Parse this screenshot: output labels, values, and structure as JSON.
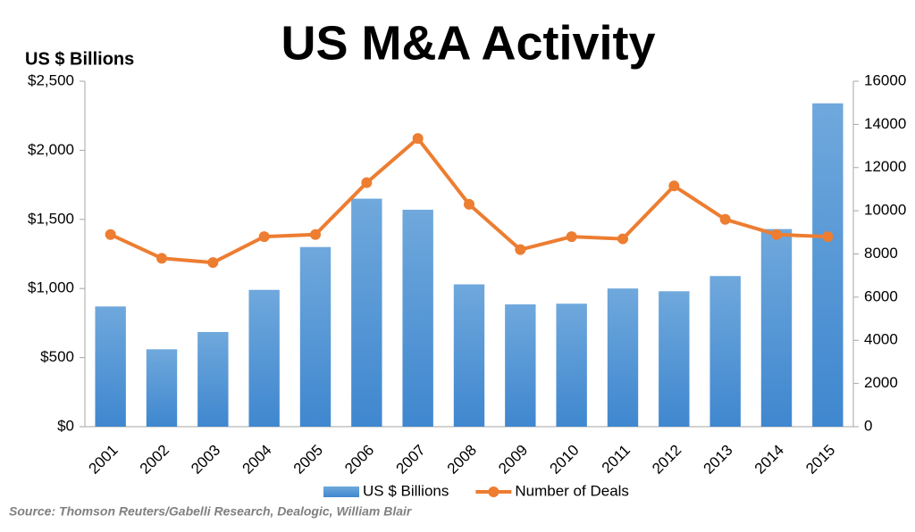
{
  "chart_data": {
    "type": "bar-line",
    "title": "US M&A Activity",
    "y_label": "US $ Billions",
    "source": "Source: Thomson Reuters/Gabelli Research, Dealogic, William Blair",
    "categories": [
      "2001",
      "2002",
      "2003",
      "2004",
      "2005",
      "2006",
      "2007",
      "2008",
      "2009",
      "2010",
      "2011",
      "2012",
      "2013",
      "2014",
      "2015"
    ],
    "series": [
      {
        "name": "US $ Billions",
        "type": "bar",
        "color": "#5b9bd5",
        "axis": "y",
        "values": [
          870,
          560,
          685,
          990,
          1300,
          1650,
          1570,
          1030,
          885,
          890,
          1000,
          980,
          1090,
          1430,
          2340
        ]
      },
      {
        "name": "Number of Deals",
        "type": "line",
        "color": "#ed7d31",
        "axis": "y2",
        "values": [
          8900,
          7800,
          7600,
          8800,
          8900,
          11300,
          13350,
          10300,
          8200,
          8800,
          8700,
          11150,
          9600,
          8900,
          8800
        ]
      }
    ],
    "ylim": [
      0,
      2500
    ],
    "yticks": [
      {
        "value": 0,
        "label": "$0"
      },
      {
        "value": 500,
        "label": "$500"
      },
      {
        "value": 1000,
        "label": "$1,000"
      },
      {
        "value": 1500,
        "label": "$1,500"
      },
      {
        "value": 2000,
        "label": "$2,000"
      },
      {
        "value": 2500,
        "label": "$2,500"
      }
    ],
    "y2lim": [
      0,
      16000
    ],
    "y2ticks": [
      0,
      2000,
      4000,
      6000,
      8000,
      10000,
      12000,
      14000,
      16000
    ],
    "legend": "bottom"
  }
}
